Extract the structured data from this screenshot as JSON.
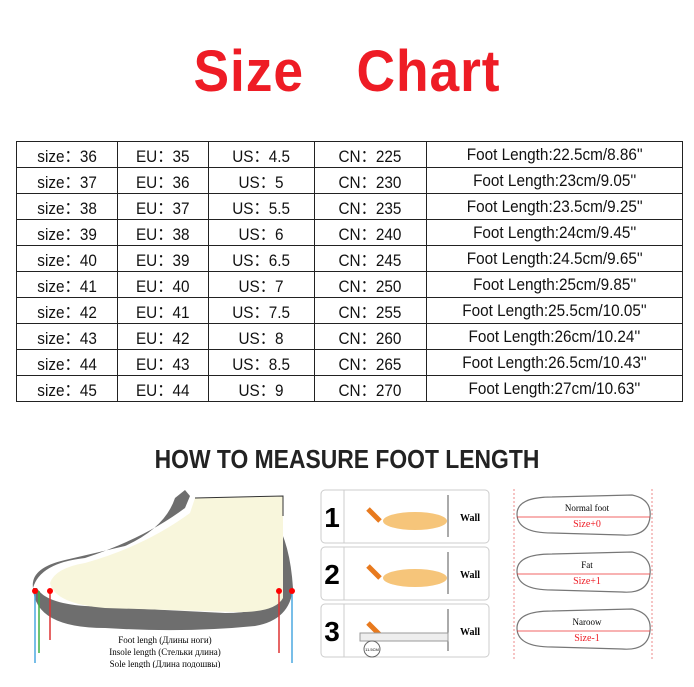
{
  "title": "Size    Chart",
  "table": [
    [
      "size：36",
      "EU：35",
      "US：4.5",
      "CN：225",
      "Foot Length:22.5cm/8.86''"
    ],
    [
      "size：37",
      "EU：36",
      "US：5",
      "CN：230",
      "Foot Length:23cm/9.05''"
    ],
    [
      "size：38",
      "EU：37",
      "US：5.5",
      "CN：235",
      "Foot Length:23.5cm/9.25''"
    ],
    [
      "size：39",
      "EU：38",
      "US：6",
      "CN：240",
      "Foot Length:24cm/9.45''"
    ],
    [
      "size：40",
      "EU：39",
      "US：6.5",
      "CN：245",
      "Foot Length:24.5cm/9.65''"
    ],
    [
      "size：41",
      "EU：40",
      "US：7",
      "CN：250",
      "Foot Length:25cm/9.85''"
    ],
    [
      "size：42",
      "EU：41",
      "US：7.5",
      "CN：255",
      "Foot Length:25.5cm/10.05''"
    ],
    [
      "size：43",
      "EU：42",
      "US：8",
      "CN：260",
      "Foot Length:26cm/10.24''"
    ],
    [
      "size：44",
      "EU：43",
      "US：8.5",
      "CN：265",
      "Foot Length:26.5cm/10.43''"
    ],
    [
      "size：45",
      "EU：44",
      "US：9",
      "CN：270",
      "Foot Length:27cm/10.63''"
    ]
  ],
  "howto": "HOW TO MEASURE FOOT LENGTH",
  "shoe": {
    "foot": "Foot lengh (Длины ноги)",
    "insole": "Insole length (Стельки длина)",
    "sole": "Sole length (Длина подошвы)"
  },
  "steps": [
    {
      "n": "1",
      "wall": "Wall"
    },
    {
      "n": "2",
      "wall": "Wall"
    },
    {
      "n": "3",
      "wall": "Wall",
      "ruler": "11.5CM"
    }
  ],
  "feet": [
    {
      "type": "Normal foot",
      "size": "Size+0"
    },
    {
      "type": "Fat",
      "size": "Size+1"
    },
    {
      "type": "Naroow",
      "size": "Size-1"
    }
  ],
  "colors": {
    "title": "#ee1c25",
    "size_label": "#ee1c25"
  }
}
